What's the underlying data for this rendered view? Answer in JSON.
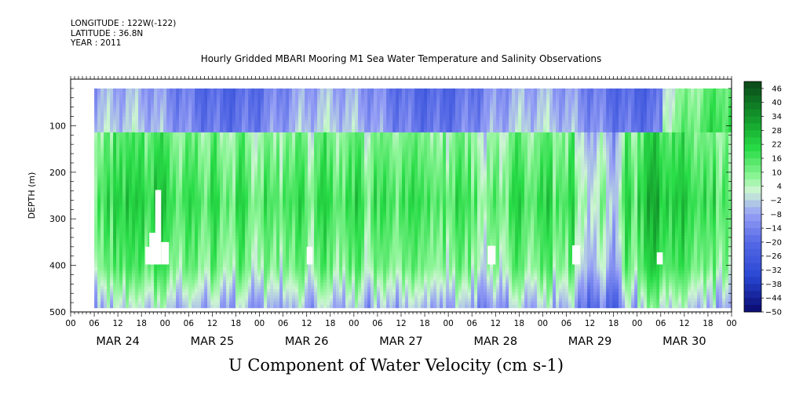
{
  "header": {
    "longitude": "LONGITUDE : 122W(-122)",
    "latitude": "LATITUDE : 36.8N",
    "year": "YEAR : 2011"
  },
  "chart_data": {
    "type": "heatmap",
    "title": "Hourly Gridded MBARI Mooring M1 Sea Water Temperature and Salinity Observations",
    "subtitle": "U Component of Water Velocity (cm s-1)",
    "ylabel": "DEPTH (m)",
    "xlabel": "",
    "y_axis": {
      "ylim": [
        500,
        0
      ],
      "inverted": true,
      "ticks": [
        100,
        200,
        300,
        400,
        500
      ]
    },
    "x_axis": {
      "hour_ticks": [
        "00",
        "06",
        "12",
        "18",
        "00",
        "06",
        "12",
        "18",
        "00",
        "06",
        "12",
        "18",
        "00",
        "06",
        "12",
        "18",
        "00",
        "06",
        "12",
        "18",
        "00",
        "06",
        "12",
        "18",
        "00",
        "06",
        "12",
        "18",
        "00"
      ],
      "day_labels": [
        "MAR 24",
        "MAR 25",
        "MAR 26",
        "MAR 27",
        "MAR 28",
        "MAR 29",
        "MAR 30"
      ],
      "data_start_hour": 6,
      "data_end_hour": 168
    },
    "data_depth_range": [
      20,
      488
    ],
    "colorbar": {
      "labels": [
        "46",
        "40",
        "34",
        "28",
        "22",
        "16",
        "10",
        "4",
        "-2",
        "-8",
        "-14",
        "-20",
        "-26",
        "-32",
        "-38",
        "-44",
        "-50"
      ],
      "range": [
        -50,
        49
      ]
    },
    "description_values": {
      "surface_band_depth": [
        20,
        110
      ],
      "surface_band_u_range": [
        -20,
        5
      ],
      "subsurface_u_range": [
        4,
        28
      ],
      "strongest_core_near": [
        "MAR 24 18",
        "MAR 30 06"
      ]
    },
    "grid": false
  }
}
